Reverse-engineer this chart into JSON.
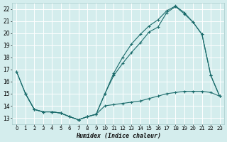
{
  "title": "",
  "xlabel": "Humidex (Indice chaleur)",
  "bg_color": "#d4eded",
  "grid_color": "#b8d8d8",
  "line_color": "#1a6b6b",
  "xlim": [
    -0.5,
    23.5
  ],
  "ylim": [
    12.5,
    22.5
  ],
  "xticks": [
    0,
    1,
    2,
    3,
    4,
    5,
    6,
    7,
    8,
    9,
    10,
    11,
    12,
    13,
    14,
    15,
    16,
    17,
    18,
    19,
    20,
    21,
    22,
    23
  ],
  "yticks": [
    13,
    14,
    15,
    16,
    17,
    18,
    19,
    20,
    21,
    22
  ],
  "line1_x": [
    0,
    1,
    2,
    3,
    4,
    5,
    6,
    7,
    8,
    9,
    10,
    11,
    12,
    13,
    14,
    15,
    16,
    17,
    18,
    19,
    20,
    21,
    22,
    23
  ],
  "line1_y": [
    16.8,
    15.0,
    13.7,
    13.5,
    13.5,
    13.4,
    13.1,
    12.85,
    13.1,
    13.3,
    15.0,
    16.5,
    17.5,
    18.4,
    19.2,
    20.1,
    20.5,
    21.7,
    22.2,
    21.6,
    20.9,
    19.9,
    16.5,
    14.8
  ],
  "line2_x": [
    0,
    1,
    2,
    3,
    4,
    5,
    6,
    7,
    8,
    9,
    10,
    11,
    12,
    13,
    14,
    15,
    16,
    17,
    18,
    19,
    20,
    21,
    22,
    23
  ],
  "line2_y": [
    16.8,
    15.0,
    13.7,
    13.5,
    13.5,
    13.4,
    13.1,
    12.85,
    13.1,
    13.3,
    14.0,
    14.1,
    14.2,
    14.3,
    14.4,
    14.6,
    14.8,
    15.0,
    15.1,
    15.2,
    15.2,
    15.2,
    15.1,
    14.8
  ],
  "line3_x": [
    1,
    2,
    3,
    4,
    5,
    6,
    7,
    8,
    9,
    10,
    11,
    12,
    13,
    14,
    15,
    16,
    17,
    18,
    19,
    20,
    21,
    22,
    23
  ],
  "line3_y": [
    15.0,
    13.7,
    13.5,
    13.5,
    13.4,
    13.1,
    12.85,
    13.1,
    13.3,
    15.0,
    16.7,
    18.0,
    19.1,
    19.9,
    20.6,
    21.1,
    21.85,
    22.25,
    21.7,
    20.9,
    19.9,
    16.5,
    14.8
  ]
}
